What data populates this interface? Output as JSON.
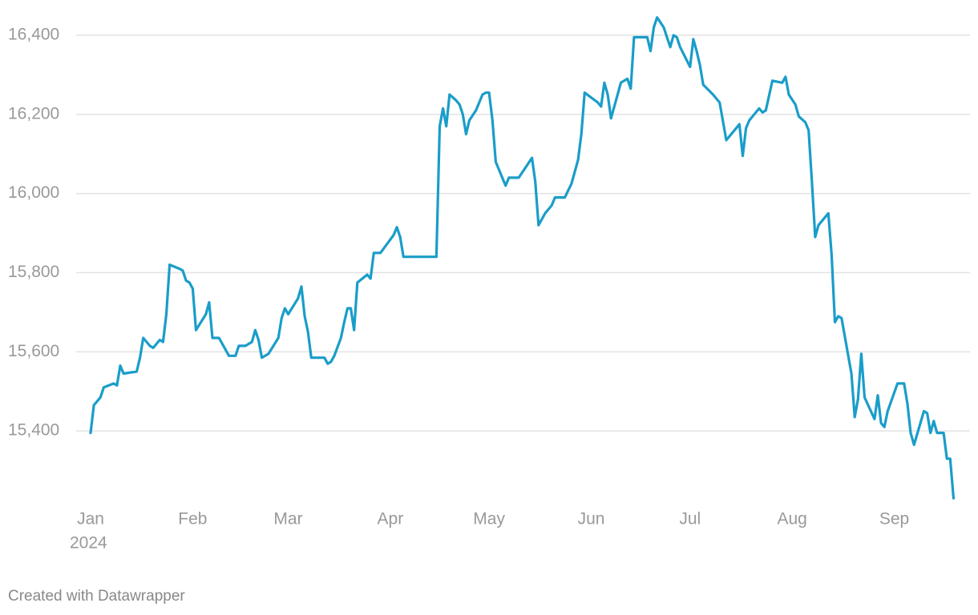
{
  "chart_data": {
    "type": "line",
    "color": "#1a9dc9",
    "grid": true,
    "year_label": "2024",
    "footer": "Created with Datawrapper",
    "xlim": [
      0,
      267
    ],
    "xticks": [
      {
        "value": 0,
        "label": "Jan"
      },
      {
        "value": 31,
        "label": "Feb"
      },
      {
        "value": 60,
        "label": "Mar"
      },
      {
        "value": 91,
        "label": "Apr"
      },
      {
        "value": 121,
        "label": "May"
      },
      {
        "value": 152,
        "label": "Jun"
      },
      {
        "value": 182,
        "label": "Jul"
      },
      {
        "value": 213,
        "label": "Aug"
      },
      {
        "value": 244,
        "label": "Sep"
      }
    ],
    "ylim": [
      15200,
      16450
    ],
    "yticks": [
      {
        "value": 15400,
        "label": "15,400"
      },
      {
        "value": 15600,
        "label": "15,600"
      },
      {
        "value": 15800,
        "label": "15,800"
      },
      {
        "value": 16000,
        "label": "16,000"
      },
      {
        "value": 16200,
        "label": "16,200"
      },
      {
        "value": 16400,
        "label": "16,400"
      }
    ],
    "x": [
      0,
      1,
      3,
      4,
      7,
      8,
      9,
      10,
      14,
      15,
      16,
      18,
      19,
      21,
      22,
      23,
      24,
      27,
      28,
      29,
      30,
      31,
      32,
      35,
      36,
      37,
      39,
      42,
      44,
      45,
      47,
      49,
      50,
      51,
      52,
      54,
      57,
      58,
      59,
      60,
      63,
      64,
      65,
      66,
      67,
      71,
      72,
      73,
      74,
      76,
      77,
      78,
      79,
      80,
      81,
      84,
      85,
      86,
      88,
      92,
      93,
      94,
      95,
      105,
      106,
      107,
      108,
      109,
      111,
      112,
      113,
      114,
      115,
      117,
      119,
      120,
      121,
      122,
      123,
      126,
      127,
      130,
      134,
      135,
      136,
      138,
      140,
      141,
      144,
      146,
      148,
      149,
      150,
      154,
      155,
      156,
      157,
      158,
      159,
      161,
      163,
      164,
      165,
      169,
      170,
      171,
      172,
      174,
      176,
      177,
      178,
      179,
      182,
      183,
      184,
      185,
      186,
      189,
      190,
      191,
      193,
      197,
      198,
      199,
      200,
      203,
      204,
      205,
      207,
      210,
      211,
      212,
      214,
      215,
      217,
      218,
      219,
      220,
      221,
      224,
      225,
      226,
      227,
      228,
      231,
      232,
      233,
      234,
      235,
      238,
      239,
      240,
      241,
      242,
      245,
      247,
      248,
      249,
      250,
      253,
      254,
      255,
      256,
      257,
      259,
      260,
      261,
      262
    ],
    "values": [
      15395,
      15465,
      15485,
      15510,
      15520,
      15515,
      15565,
      15545,
      15550,
      15585,
      15635,
      15615,
      15610,
      15630,
      15625,
      15695,
      15820,
      15810,
      15805,
      15780,
      15775,
      15760,
      15655,
      15695,
      15725,
      15635,
      15635,
      15590,
      15590,
      15615,
      15615,
      15625,
      15655,
      15630,
      15585,
      15595,
      15635,
      15685,
      15710,
      15695,
      15735,
      15765,
      15690,
      15650,
      15585,
      15585,
      15570,
      15575,
      15590,
      15635,
      15675,
      15710,
      15710,
      15655,
      15775,
      15795,
      15785,
      15850,
      15850,
      15895,
      15915,
      15890,
      15840,
      15840,
      16170,
      16215,
      16170,
      16250,
      16235,
      16225,
      16200,
      16150,
      16185,
      16210,
      16250,
      16255,
      16255,
      16185,
      16080,
      16020,
      16040,
      16040,
      16090,
      16030,
      15920,
      15950,
      15970,
      15990,
      15990,
      16025,
      16085,
      16150,
      16255,
      16230,
      16220,
      16280,
      16250,
      16190,
      16220,
      16280,
      16290,
      16265,
      16395,
      16395,
      16360,
      16420,
      16445,
      16420,
      16370,
      16400,
      16395,
      16370,
      16320,
      16390,
      16360,
      16325,
      16275,
      16250,
      16240,
      16230,
      16135,
      16175,
      16095,
      16165,
      16185,
      16215,
      16205,
      16210,
      16285,
      16280,
      16295,
      16250,
      16225,
      16195,
      16180,
      16160,
      16030,
      15890,
      15920,
      15950,
      15845,
      15675,
      15690,
      15685,
      15545,
      15435,
      15480,
      15595,
      15485,
      15430,
      15490,
      15420,
      15410,
      15450,
      15520,
      15520,
      15470,
      15395,
      15365,
      15450,
      15445,
      15395,
      15425,
      15395,
      15395,
      15330,
      15330,
      15230
    ]
  }
}
